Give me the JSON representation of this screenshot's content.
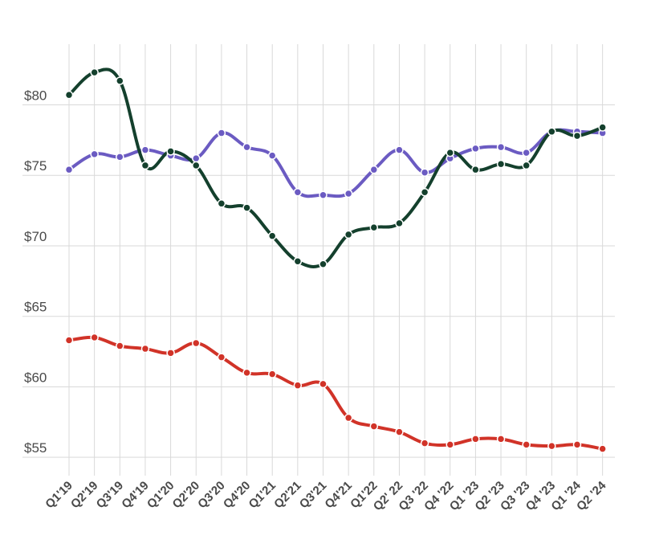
{
  "chart_data": {
    "type": "line",
    "title": "",
    "xlabel": "",
    "ylabel": "",
    "ylim": [
      53.7,
      84.3
    ],
    "grid": true,
    "yticks": [
      {
        "value": 55,
        "label": "$55"
      },
      {
        "value": 60,
        "label": "$60"
      },
      {
        "value": 65,
        "label": "$65"
      },
      {
        "value": 70,
        "label": "$70"
      },
      {
        "value": 75,
        "label": "$75"
      },
      {
        "value": 80,
        "label": "$80"
      }
    ],
    "categories": [
      "Q1'19",
      "Q2'19",
      "Q3'19",
      "Q4'19",
      "Q1'20",
      "Q2'20",
      "Q3'20",
      "Q4'20",
      "Q1'21",
      "Q2'21",
      "Q3'21",
      "Q4'21",
      "Q1'22",
      "Q2' 22",
      "Q3 '22",
      "Q4 '22",
      "Q1 '23",
      "Q2 '23",
      "Q3 '23",
      "Q4 '23",
      "Q1 '24",
      "Q2 '24"
    ],
    "series": [
      {
        "color": "#6b5bc2",
        "values": [
          75.4,
          76.5,
          76.3,
          76.8,
          76.4,
          76.2,
          78.0,
          77.0,
          76.4,
          73.8,
          73.6,
          73.7,
          75.4,
          76.8,
          75.2,
          76.2,
          76.9,
          77.0,
          76.6,
          78.1,
          78.1,
          78.0
        ]
      },
      {
        "color": "#14402d",
        "values": [
          80.7,
          82.3,
          81.7,
          75.7,
          76.7,
          75.7,
          73.0,
          72.7,
          70.7,
          68.9,
          68.7,
          70.8,
          71.3,
          71.6,
          73.8,
          76.6,
          75.4,
          75.8,
          75.7,
          78.1,
          77.8,
          78.4
        ]
      },
      {
        "color": "#d13328",
        "values": [
          63.3,
          63.5,
          62.9,
          62.7,
          62.4,
          63.1,
          62.1,
          61.0,
          60.9,
          60.1,
          60.2,
          57.8,
          57.2,
          56.8,
          56.0,
          55.9,
          56.3,
          56.3,
          55.9,
          55.8,
          55.9,
          55.6
        ]
      }
    ]
  }
}
